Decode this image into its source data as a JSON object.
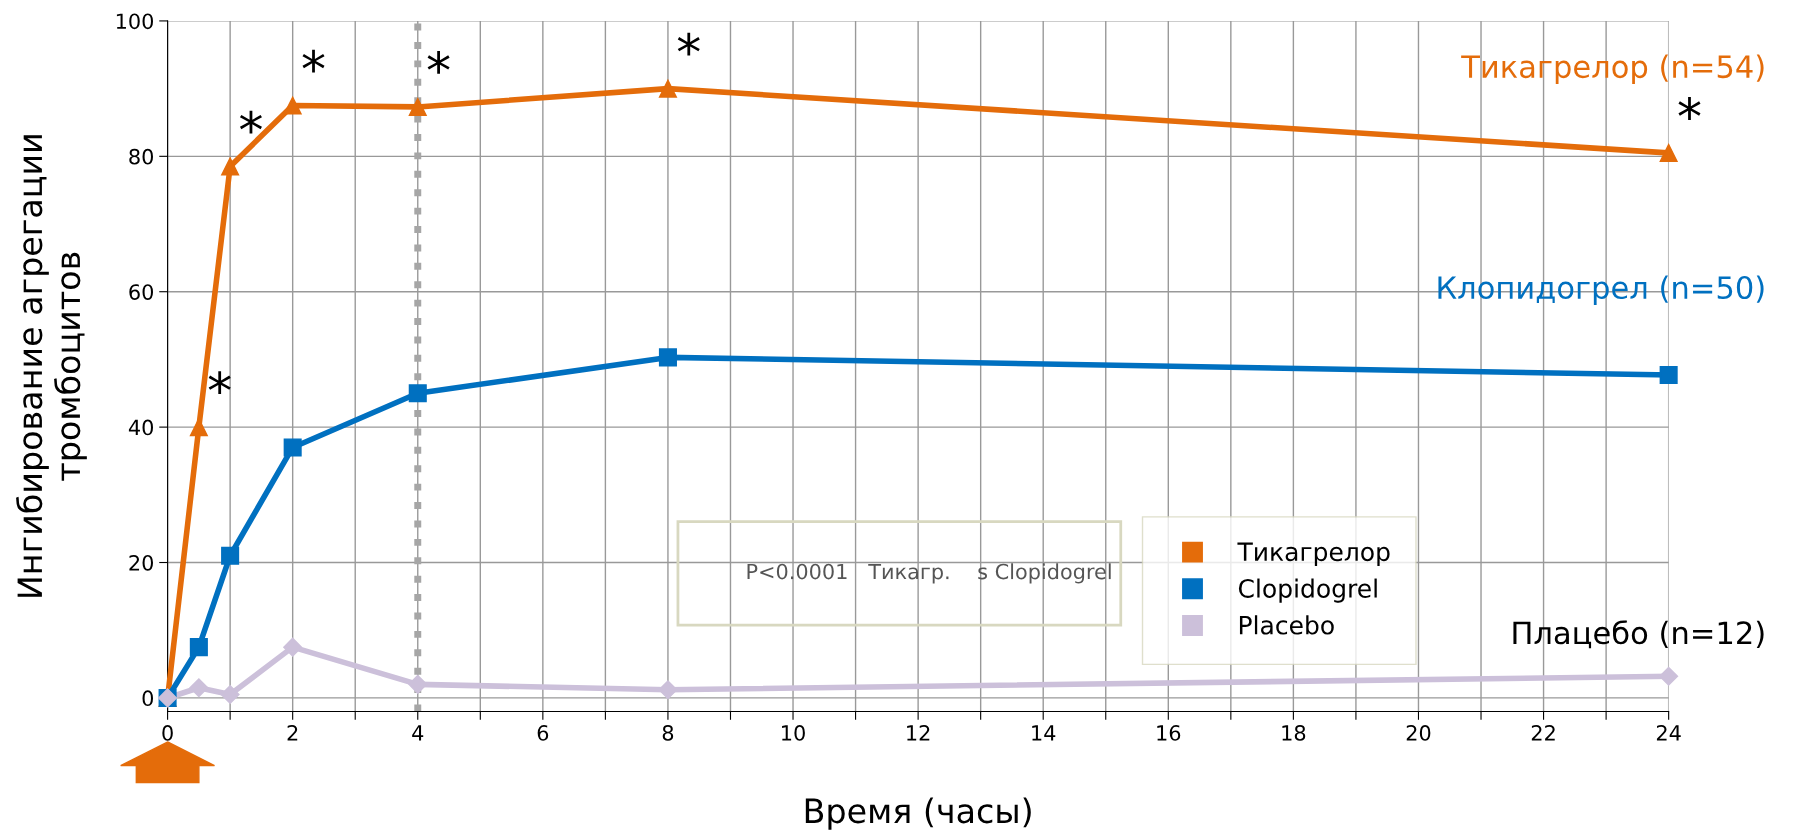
{
  "chart_data": {
    "type": "line",
    "xlabel": "Время (часы)",
    "ylabel": "Ингибирование агрегации\nтромбоцитов",
    "xlim": [
      0,
      24
    ],
    "ylim": [
      -2,
      100
    ],
    "xticks": [
      0,
      {
        "value": 1,
        "label": null
      },
      2,
      {
        "value": 3,
        "label": null
      },
      4,
      {
        "value": 5,
        "label": null
      },
      6,
      {
        "value": 7,
        "label": null
      },
      8,
      {
        "value": 9,
        "label": null
      },
      10,
      {
        "value": 11,
        "label": null
      },
      12,
      {
        "value": 13,
        "label": null
      },
      14,
      {
        "value": 15,
        "label": null
      },
      16,
      {
        "value": 17,
        "label": null
      },
      18,
      {
        "value": 19,
        "label": null
      },
      20,
      {
        "value": 21,
        "label": null
      },
      22,
      {
        "value": 23,
        "label": null
      },
      24
    ],
    "yticks": [
      0,
      20,
      40,
      60,
      80,
      100
    ],
    "grid": true,
    "legend": "bottom right",
    "x": [
      0,
      0.5,
      1,
      2,
      4,
      8,
      24
    ],
    "series": [
      {
        "name": "Тикагрелор",
        "color": "#e46c0a",
        "marker": "triangle",
        "values": [
          0,
          40,
          78.5,
          87.5,
          87.3,
          90,
          80.5
        ]
      },
      {
        "name": "Clopidogrel",
        "color": "#0070c0",
        "marker": "square",
        "values": [
          0,
          7.5,
          21,
          37,
          45,
          50.3,
          47.7
        ]
      },
      {
        "name": "Placebo",
        "color": "#ccc0da",
        "marker": "diamond",
        "values": [
          0,
          1.5,
          0.5,
          7.5,
          2,
          1.2,
          3.2
        ]
      }
    ],
    "ref_lines": [
      {
        "axis": "x",
        "value": 4,
        "label": null,
        "color": "#a6a6a6",
        "line_style": "dotted"
      }
    ],
    "annotations": [
      "Тикагрелор (n=54)",
      "Клопидогрел (n=50)",
      "Плацебо (n=12)",
      {
        "text": "*",
        "x": 0.5,
        "y": 40
      },
      {
        "text": "*",
        "x": 1,
        "y": 78.5
      },
      {
        "text": "*",
        "x": 2,
        "y": 87.5
      },
      {
        "text": "*",
        "x": 4,
        "y": 87.3
      },
      {
        "text": "*",
        "x": 8,
        "y": 90
      },
      {
        "text": "*",
        "x": 24,
        "y": 80.5
      },
      "P<0.0001   Тикагр.    s Clopidogrel"
    ]
  }
}
